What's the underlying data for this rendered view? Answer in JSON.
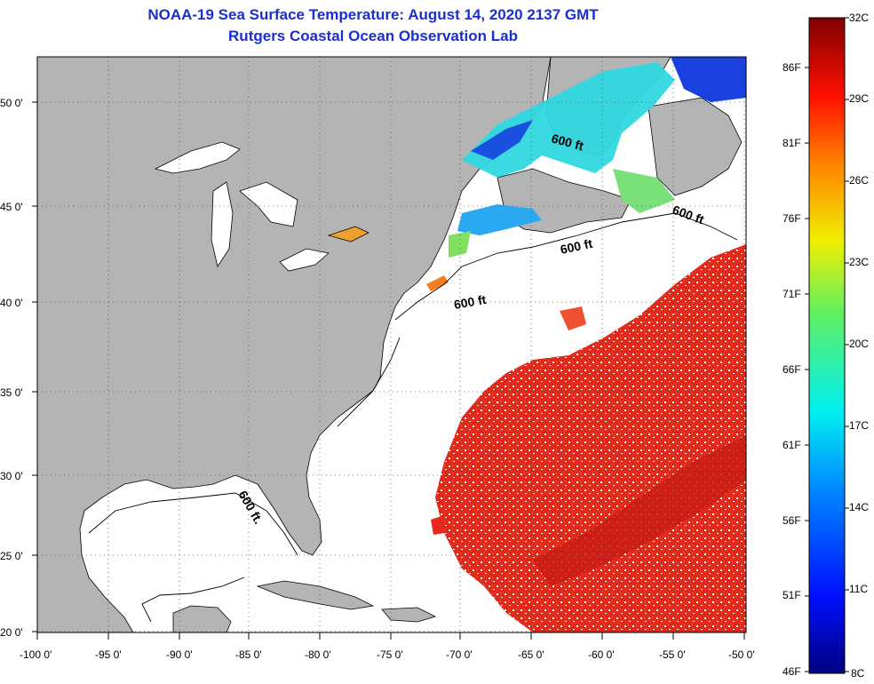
{
  "header": {
    "title": "NOAA-19 Sea Surface Temperature:  August 14, 2020 2137 GMT",
    "subtitle": "Rutgers Coastal Ocean Observation Lab"
  },
  "axes": {
    "lat_labels": [
      "50 0'",
      "45 0'",
      "40 0'",
      "35 0'",
      "30 0'",
      "25 0'",
      "20 0'"
    ],
    "lon_labels": [
      "-100 0'",
      "-95 0'",
      "-90 0'",
      "-85 0'",
      "-80 0'",
      "-75 0'",
      "-70 0'",
      "-65 0'",
      "-60 0'",
      "-55 0'",
      "-50 0'"
    ]
  },
  "contour_labels": [
    "600 ft",
    "600 ft",
    "600 ft",
    "600 ft",
    "600 ft."
  ],
  "colorbar": {
    "celsius": [
      "32C",
      "29C",
      "26C",
      "23C",
      "20C",
      "17C",
      "14C",
      "11C",
      "8C"
    ],
    "fahrenheit": [
      "86F",
      "81F",
      "76F",
      "71F",
      "66F",
      "61F",
      "56F",
      "51F",
      "46F"
    ]
  },
  "colors": {
    "land": "#b4b4b4",
    "title": "#1a2fd0",
    "warm": "#e8281c",
    "cold": "#1a3fd6"
  }
}
